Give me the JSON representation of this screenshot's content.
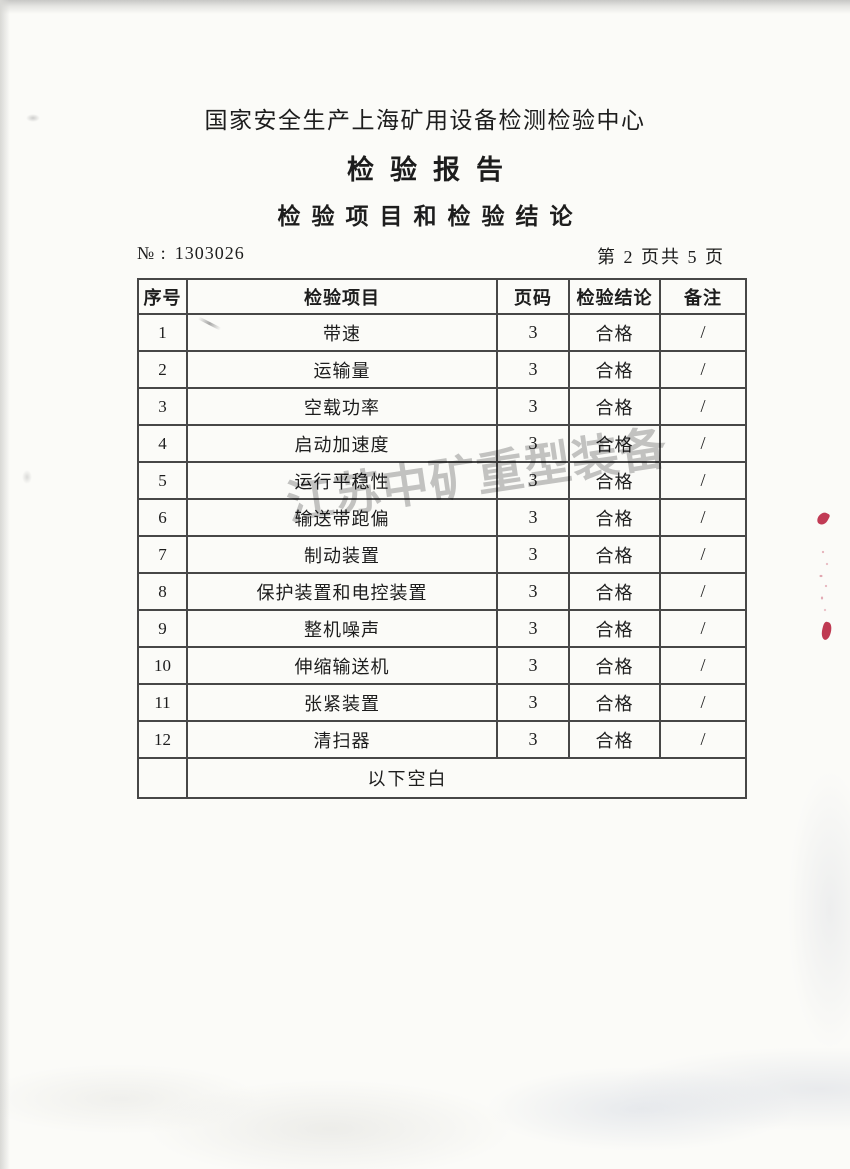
{
  "header": {
    "org_title": "国家安全生产上海矿用设备检测检验中心",
    "report_title": "检验报告",
    "section_title": "检验项目和检验结论",
    "doc_no_label": "№ :",
    "doc_no": "1303026",
    "page_info": "第 2 页共 5 页"
  },
  "table": {
    "headers": [
      "序号",
      "检验项目",
      "页码",
      "检验结论",
      "备注"
    ],
    "rows": [
      {
        "no": "1",
        "item": "带速",
        "page": "3",
        "result": "合格",
        "remark": "/"
      },
      {
        "no": "2",
        "item": "运输量",
        "page": "3",
        "result": "合格",
        "remark": "/"
      },
      {
        "no": "3",
        "item": "空载功率",
        "page": "3",
        "result": "合格",
        "remark": "/"
      },
      {
        "no": "4",
        "item": "启动加速度",
        "page": "3",
        "result": "合格",
        "remark": "/"
      },
      {
        "no": "5",
        "item": "运行平稳性",
        "page": "3",
        "result": "合格",
        "remark": "/"
      },
      {
        "no": "6",
        "item": "输送带跑偏",
        "page": "3",
        "result": "合格",
        "remark": "/"
      },
      {
        "no": "7",
        "item": "制动装置",
        "page": "3",
        "result": "合格",
        "remark": "/"
      },
      {
        "no": "8",
        "item": "保护装置和电控装置",
        "page": "3",
        "result": "合格",
        "remark": "/"
      },
      {
        "no": "9",
        "item": "整机噪声",
        "page": "3",
        "result": "合格",
        "remark": "/"
      },
      {
        "no": "10",
        "item": "伸缩输送机",
        "page": "3",
        "result": "合格",
        "remark": "/"
      },
      {
        "no": "11",
        "item": "张紧装置",
        "page": "3",
        "result": "合格",
        "remark": "/"
      },
      {
        "no": "12",
        "item": "清扫器",
        "page": "3",
        "result": "合格",
        "remark": "/"
      }
    ],
    "footer_note": "以下空白"
  },
  "watermark": {
    "text": "江苏中矿重型装备"
  },
  "colors": {
    "paper": "#fbfbf8",
    "table_border": "#474747",
    "watermark_gray": "#8f9092",
    "seal_red": "#c13b55"
  }
}
